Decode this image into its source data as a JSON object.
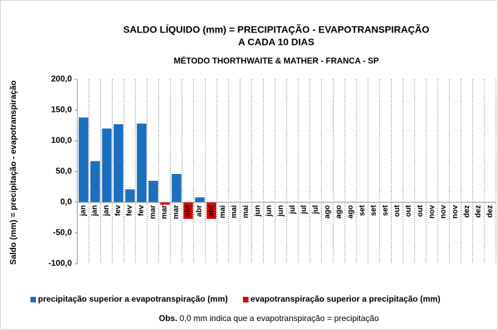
{
  "chart_data": {
    "type": "bar",
    "title": [
      "SALDO LÍQUIDO (mm) =  PRECIPITAÇÃO - EVAPOTRANSPIRAÇÃO",
      "A CADA 10 DIAS"
    ],
    "subtitle": "MÉTODO THORTHWAITE & MATHER - FRANCA - SP",
    "y_label": "Saldo (mm) = precipitação - evapotranspiração",
    "categories": [
      "jan",
      "jan",
      "jan",
      "fev",
      "fev",
      "fev",
      "mar",
      "mar",
      "mar",
      "abr",
      "abr",
      "abr",
      "mai",
      "mai",
      "mai",
      "jun",
      "jun",
      "jun",
      "jul",
      "jul",
      "jul",
      "ago",
      "ago",
      "ago",
      "set",
      "set",
      "set",
      "out",
      "out",
      "out",
      "nov",
      "nov",
      "nov",
      "dez",
      "dez",
      "dez"
    ],
    "series": [
      {
        "name": "precipitação superior a evapotranspiração (mm)",
        "color": "#1b6fbf",
        "values": [
          138,
          67,
          120,
          127,
          21,
          128,
          35,
          null,
          46,
          null,
          8,
          null,
          null,
          null,
          null,
          null,
          null,
          null,
          null,
          null,
          null,
          null,
          null,
          null,
          null,
          null,
          null,
          null,
          null,
          null,
          null,
          null,
          null,
          null,
          null,
          null
        ]
      },
      {
        "name": "evapotranspiração superior a precipitação (mm)",
        "color": "#e00000",
        "values": [
          null,
          null,
          null,
          null,
          null,
          null,
          null,
          -4,
          null,
          -27,
          null,
          -27,
          null,
          null,
          null,
          null,
          null,
          null,
          null,
          null,
          null,
          null,
          null,
          null,
          null,
          null,
          null,
          null,
          null,
          null,
          null,
          null,
          null,
          null,
          null,
          null
        ]
      }
    ],
    "ylim": [
      -100,
      200
    ],
    "yticks": [
      {
        "value": -100,
        "label": "-100,0"
      },
      {
        "value": -50,
        "label": "-50,0"
      },
      {
        "value": 0,
        "label": "0,0"
      },
      {
        "value": 50,
        "label": "50,0"
      },
      {
        "value": 100,
        "label": "100,0"
      },
      {
        "value": 150,
        "label": "150,0"
      },
      {
        "value": 200,
        "label": "200,0"
      }
    ],
    "legend": "bottom",
    "note_label": "Obs.",
    "note_text": " 0,0 mm indica que a evapotranspiração = precipitação"
  }
}
